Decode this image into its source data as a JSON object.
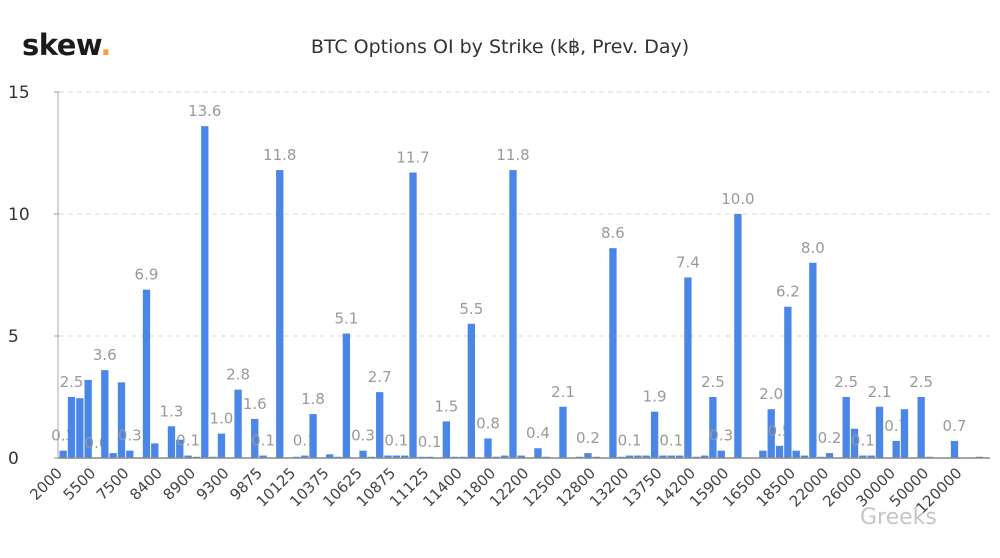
{
  "logo": {
    "text": "skew",
    "dot": "."
  },
  "watermark": "Greeks",
  "chart_data": {
    "type": "bar",
    "title": "BTC Options OI by Strike (k฿, Prev. Day)",
    "xlabel": "",
    "ylabel": "",
    "ylim": [
      0,
      15
    ],
    "yticks": [
      "0",
      "5",
      "10",
      "15"
    ],
    "grid": true,
    "bar_color": "#4a86e8",
    "tick_labels": [
      "2000",
      "5500",
      "7500",
      "8400",
      "8900",
      "9300",
      "9875",
      "10125",
      "10375",
      "10625",
      "10875",
      "11125",
      "11400",
      "11800",
      "12200",
      "12500",
      "12800",
      "13200",
      "13750",
      "14200",
      "15900",
      "16500",
      "18500",
      "22000",
      "26000",
      "30000",
      "50000",
      "120000"
    ],
    "tick_every": 4,
    "values": [
      0.3,
      2.5,
      2.45,
      3.2,
      0.0,
      3.6,
      0.2,
      3.1,
      0.3,
      0,
      6.9,
      0.6,
      0,
      1.3,
      0.75,
      0.1,
      0.05,
      13.6,
      0.05,
      1.0,
      0,
      2.8,
      0,
      1.6,
      0.1,
      0,
      11.8,
      0,
      0.05,
      0.1,
      1.8,
      0,
      0.15,
      0.05,
      5.1,
      0,
      0.3,
      0.05,
      2.7,
      0.1,
      0.1,
      0.1,
      11.7,
      0.05,
      0.05,
      0,
      1.5,
      0.05,
      0.05,
      5.5,
      0,
      0.8,
      0.05,
      0.1,
      11.8,
      0.1,
      0,
      0.4,
      0.05,
      0,
      2.1,
      0,
      0.05,
      0.2,
      0.05,
      0,
      8.6,
      0.05,
      0.1,
      0.1,
      0.1,
      1.9,
      0.1,
      0.1,
      0.1,
      7.4,
      0.05,
      0.1,
      2.5,
      0.3,
      0,
      10.0,
      0,
      0,
      0.3,
      2.0,
      0.5,
      6.2,
      0.3,
      0.1,
      8.0,
      0.05,
      0.2,
      0,
      2.5,
      1.2,
      0.1,
      0.1,
      2.1,
      0,
      0.7,
      2.0,
      0,
      2.5,
      0.05,
      0.02,
      0,
      0.7,
      0,
      0.02,
      0.05
    ],
    "data_labels": {
      "0": "0.3",
      "1": "2.5",
      "4": "0.0",
      "5": "3.6",
      "8": "0.3",
      "10": "6.9",
      "13": "1.3",
      "15": "0.1",
      "17": "13.6",
      "19": "1.0",
      "21": "2.8",
      "23": "1.6",
      "24": "0.1",
      "26": "11.8",
      "29": "0.1",
      "30": "1.8",
      "34": "5.1",
      "36": "0.3",
      "38": "2.7",
      "40": "0.1",
      "42": "11.7",
      "44": "0.1",
      "46": "1.5",
      "49": "5.5",
      "51": "0.8",
      "54": "11.8",
      "57": "0.4",
      "60": "2.1",
      "63": "0.2",
      "66": "8.6",
      "68": "0.1",
      "71": "1.9",
      "73": "0.1",
      "75": "7.4",
      "78": "2.5",
      "79": "0.3",
      "81": "10.0",
      "85": "2.0",
      "86": "0.5",
      "87": "6.2",
      "90": "8.0",
      "92": "0.2",
      "94": "2.5",
      "96": "0.1",
      "98": "2.1",
      "100": "0.7",
      "103": "2.5",
      "107": "0.7"
    }
  }
}
